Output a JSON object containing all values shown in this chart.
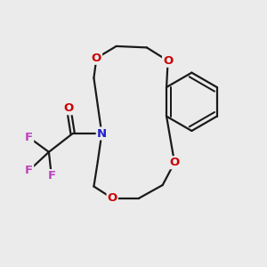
{
  "background_color": "#ebebeb",
  "bond_color": "#1a1a1a",
  "N_color": "#2020cc",
  "O_color": "#cc0000",
  "F_color": "#bb44bb",
  "figsize": [
    3.0,
    3.0
  ],
  "dpi": 100,
  "xlim": [
    0,
    10
  ],
  "ylim": [
    0,
    10
  ],
  "lw": 1.6,
  "fontsize": 9.5
}
